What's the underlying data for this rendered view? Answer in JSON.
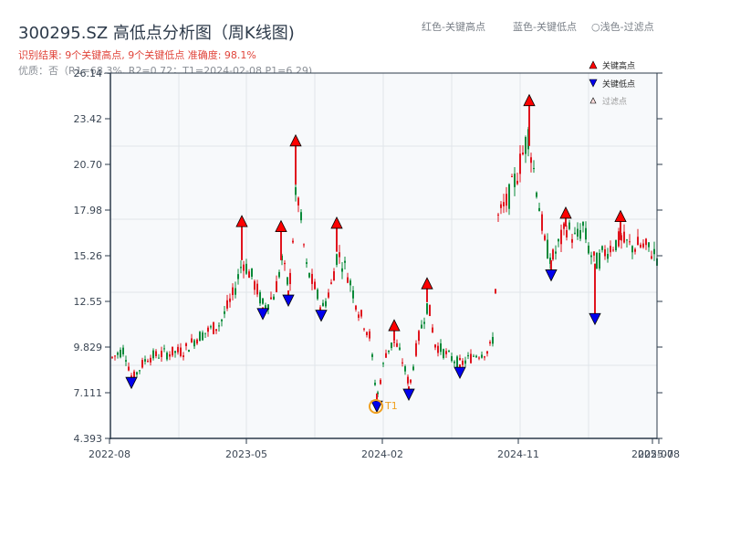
{
  "header": {
    "title": "300295.SZ 高低点分析图（周K线图)",
    "result_line": "识别结果: 9个关键高点, 9个关键低点  准确度: 98.1%",
    "quality_line": "优质：否（R1=68.3%, R2=0.72；T1=2024-02-08 P1=6.29)",
    "legend_red": "红色-关键高点",
    "legend_blue": "蓝色-关键低点",
    "legend_light": "○浅色-过滤点"
  },
  "legend": {
    "high": "关键高点",
    "low": "关键低点",
    "filtered": "过滤点"
  },
  "annotation": {
    "t1_label": "T1"
  },
  "colors": {
    "up": "#e0141e",
    "down": "#0a8a3a",
    "high_marker": "#ff0000",
    "low_marker": "#0000ee",
    "t1_ring": "#f0a020",
    "plot_bg": "#f7f9fb",
    "grid": "#e1e5ea",
    "axis": "#2b3a4a"
  },
  "chart_data": {
    "type": "candlestick",
    "title": "300295.SZ 高低点分析图（周K线图)",
    "xlabel": "",
    "ylabel": "",
    "ylim": [
      4.393,
      26.14
    ],
    "yticks": [
      "26.14",
      "23.42",
      "20.70",
      "17.98",
      "15.26",
      "12.55",
      "9.829",
      "7.111",
      "4.393"
    ],
    "xticks": [
      "2022-08",
      "2023-05",
      "2024-02",
      "2024-11",
      "2025-07",
      "2025-08"
    ],
    "grid": true,
    "legend_position": "upper right",
    "key_highs": [
      {
        "date": "2023-04",
        "price": 17.0
      },
      {
        "date": "2023-07",
        "price": 16.7
      },
      {
        "date": "2023-08",
        "price": 21.8
      },
      {
        "date": "2023-11",
        "price": 16.9
      },
      {
        "date": "2024-03",
        "price": 10.8
      },
      {
        "date": "2024-05",
        "price": 13.3
      },
      {
        "date": "2024-11",
        "price": 24.2
      },
      {
        "date": "2025-01",
        "price": 17.5
      },
      {
        "date": "2025-05",
        "price": 17.3
      }
    ],
    "key_lows": [
      {
        "date": "2022-09",
        "price": 7.7
      },
      {
        "date": "2023-06",
        "price": 11.8
      },
      {
        "date": "2023-07",
        "price": 12.6
      },
      {
        "date": "2023-10",
        "price": 11.7
      },
      {
        "date": "2024-02",
        "price": 6.29
      },
      {
        "date": "2024-03",
        "price": 7.0
      },
      {
        "date": "2024-07",
        "price": 8.3
      },
      {
        "date": "2024-12",
        "price": 14.1
      },
      {
        "date": "2025-03",
        "price": 11.5
      }
    ],
    "t1": {
      "date": "2024-02-08",
      "price": 6.29
    },
    "metrics": {
      "highs_count": 9,
      "lows_count": 9,
      "accuracy_pct": 98.1,
      "R1_pct": 68.3,
      "R2": 0.72
    }
  }
}
